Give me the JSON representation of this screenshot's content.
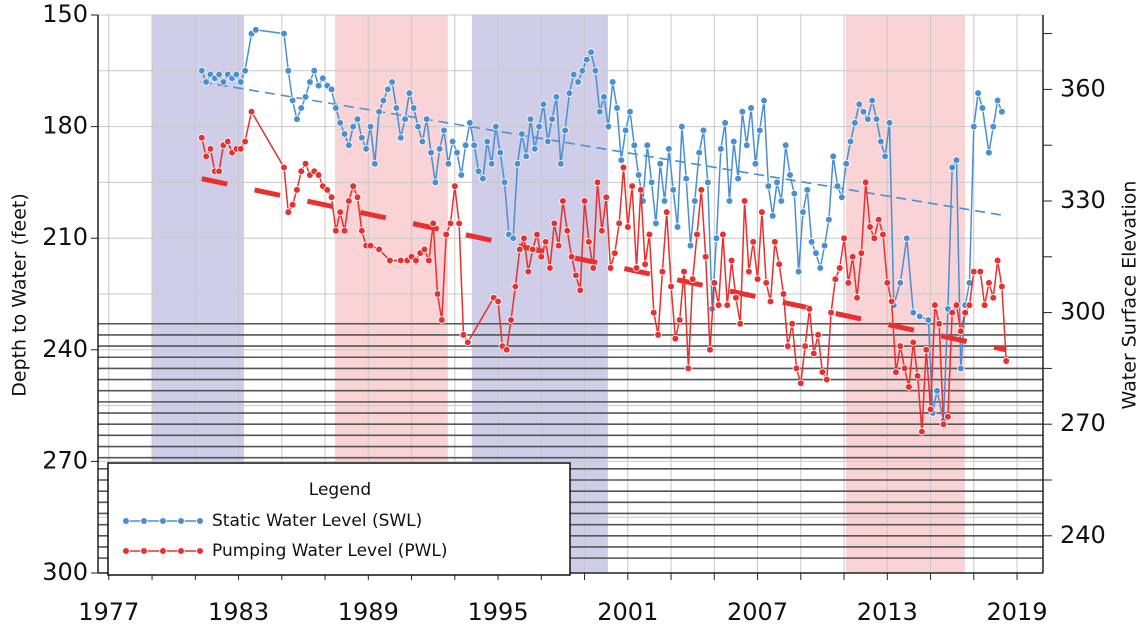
{
  "chart_data": {
    "type": "line",
    "ylabel": "Depth to Water (feet)",
    "y2label": "Water Surface Elevation",
    "legend_title": "Legend",
    "xlim": [
      1976.5,
      2020.2
    ],
    "xticks": [
      1977,
      1983,
      1989,
      1995,
      2001,
      2007,
      2013,
      2019
    ],
    "xgrid": [
      1977,
      1979,
      1981,
      1983,
      1985,
      1987,
      1989,
      1991,
      1993,
      1995,
      1997,
      1999,
      2001,
      2003,
      2005,
      2007,
      2009,
      2011,
      2013,
      2015,
      2017,
      2019
    ],
    "ylim": [
      150,
      300
    ],
    "y_reversed": true,
    "yticks": [
      150,
      180,
      210,
      240,
      270,
      300
    ],
    "ygrid": [
      150,
      165,
      180,
      195,
      210,
      225,
      240,
      255,
      270,
      285,
      300
    ],
    "y2lim": [
      230,
      380
    ],
    "y2ticks": [
      240,
      270,
      300,
      330,
      360
    ],
    "y2minor": [
      255,
      285,
      315,
      345,
      375
    ],
    "grid": true,
    "shaded_periods": [
      {
        "from": 1979.0,
        "to": 1983.25,
        "color": "#cfcde8"
      },
      {
        "from": 1987.46,
        "to": 1992.68,
        "color": "#f9d3d6"
      },
      {
        "from": 1993.79,
        "to": 2000.08,
        "color": "#cfcde8"
      },
      {
        "from": 2011.09,
        "to": 2016.59,
        "color": "#f9d3d6"
      }
    ],
    "screen_depths": [
      233,
      236,
      239,
      242,
      245,
      248,
      251,
      254,
      257,
      260,
      263,
      266,
      269,
      272,
      275,
      278,
      281,
      284,
      287,
      290,
      293,
      296
    ],
    "series": [
      {
        "name": "Static Water Level (SWL)",
        "color": "#4a8fd0",
        "x": [
          1981.3,
          1981.5,
          1981.7,
          1981.9,
          1982.1,
          1982.3,
          1982.5,
          1982.7,
          1982.9,
          1983.1,
          1983.3,
          1983.6,
          1983.8,
          1985.1,
          1985.3,
          1985.5,
          1985.7,
          1985.9,
          1986.1,
          1986.3,
          1986.5,
          1986.7,
          1986.9,
          1987.1,
          1987.3,
          1987.5,
          1987.7,
          1987.9,
          1988.1,
          1988.3,
          1988.5,
          1988.7,
          1988.9,
          1989.1,
          1989.3,
          1989.5,
          1989.7,
          1989.9,
          1990.1,
          1990.3,
          1990.5,
          1990.7,
          1990.9,
          1991.1,
          1991.3,
          1991.5,
          1991.7,
          1991.9,
          1992.1,
          1992.3,
          1992.5,
          1992.7,
          1992.9,
          1993.1,
          1993.3,
          1993.5,
          1993.7,
          1993.9,
          1994.1,
          1994.3,
          1994.5,
          1994.7,
          1994.9,
          1995.1,
          1995.3,
          1995.5,
          1995.7,
          1995.9,
          1996.1,
          1996.3,
          1996.5,
          1996.7,
          1996.9,
          1997.1,
          1997.3,
          1997.5,
          1997.7,
          1997.9,
          1998.1,
          1998.3,
          1998.5,
          1998.7,
          1998.9,
          1999.1,
          1999.3,
          1999.5,
          1999.7,
          1999.9,
          2000.1,
          2000.3,
          2000.5,
          2000.7,
          2000.9,
          2001.1,
          2001.3,
          2001.5,
          2001.7,
          2001.9,
          2002.1,
          2002.3,
          2002.5,
          2002.7,
          2002.9,
          2003.1,
          2003.3,
          2003.5,
          2003.7,
          2003.9,
          2004.1,
          2004.3,
          2004.5,
          2004.7,
          2004.9,
          2005.1,
          2005.3,
          2005.5,
          2005.7,
          2005.9,
          2006.1,
          2006.3,
          2006.5,
          2006.7,
          2006.9,
          2007.1,
          2007.3,
          2007.5,
          2007.7,
          2007.9,
          2008.1,
          2008.3,
          2008.5,
          2008.7,
          2008.9,
          2009.1,
          2009.3,
          2009.5,
          2009.7,
          2009.9,
          2010.1,
          2010.3,
          2010.5,
          2010.7,
          2010.9,
          2011.1,
          2011.3,
          2011.5,
          2011.7,
          2011.9,
          2012.1,
          2012.3,
          2012.5,
          2012.7,
          2012.9,
          2013.1,
          2013.3,
          2013.6,
          2013.9,
          2014.2,
          2014.5,
          2014.9,
          2015.1,
          2015.3,
          2015.6,
          2015.8,
          2016.0,
          2016.2,
          2016.4,
          2016.6,
          2016.8,
          2017.0,
          2017.2,
          2017.4,
          2017.7,
          2017.9,
          2018.1,
          2018.3
        ],
        "values": [
          165,
          168,
          166,
          167,
          166,
          168,
          166,
          167,
          166,
          168,
          165,
          155,
          154,
          155,
          165,
          173,
          178,
          175,
          172,
          168,
          165,
          169,
          167,
          169,
          170,
          175,
          179,
          182,
          185,
          180,
          178,
          183,
          186,
          180,
          190,
          176,
          173,
          170,
          168,
          175,
          183,
          178,
          171,
          175,
          180,
          184,
          178,
          187,
          195,
          186,
          181,
          190,
          184,
          187,
          193,
          185,
          179,
          185,
          192,
          194,
          184,
          190,
          180,
          187,
          195,
          209,
          210,
          190,
          182,
          188,
          178,
          186,
          180,
          174,
          184,
          178,
          172,
          190,
          181,
          171,
          166,
          168,
          165,
          162,
          160,
          165,
          176,
          172,
          180,
          168,
          175,
          189,
          181,
          176,
          185,
          193,
          200,
          185,
          195,
          206,
          190,
          200,
          186,
          197,
          207,
          180,
          194,
          212,
          200,
          187,
          181,
          195,
          229,
          210,
          186,
          179,
          200,
          184,
          194,
          176,
          185,
          175,
          190,
          181,
          173,
          196,
          204,
          195,
          200,
          185,
          193,
          198,
          219,
          203,
          197,
          211,
          214,
          218,
          212,
          205,
          188,
          196,
          199,
          190,
          184,
          179,
          174,
          176,
          178,
          173,
          178,
          184,
          188,
          179,
          228,
          222,
          210,
          230,
          231,
          232,
          257,
          251,
          259,
          229,
          191,
          189,
          245,
          228,
          222,
          180,
          171,
          175,
          187,
          180,
          173,
          176
        ],
        "trend": {
          "x": [
            1981.3,
            2018.5
          ],
          "values": [
            168,
            204
          ]
        }
      },
      {
        "name": "Pumping Water Level (PWL)",
        "color": "#e8302e",
        "x": [
          1981.3,
          1981.5,
          1981.7,
          1981.9,
          1982.1,
          1982.3,
          1982.5,
          1982.7,
          1982.9,
          1983.1,
          1983.3,
          1983.6,
          1985.1,
          1985.3,
          1985.5,
          1985.7,
          1985.9,
          1986.1,
          1986.3,
          1986.5,
          1986.7,
          1986.9,
          1987.1,
          1987.3,
          1987.5,
          1987.7,
          1987.9,
          1988.1,
          1988.3,
          1988.5,
          1988.7,
          1988.9,
          1989.1,
          1989.5,
          1990.0,
          1990.5,
          1990.8,
          1991.0,
          1991.2,
          1991.4,
          1991.6,
          1991.8,
          1992.0,
          1992.2,
          1992.4,
          1992.6,
          1992.8,
          1993.0,
          1993.2,
          1993.4,
          1993.6,
          1994.8,
          1995.0,
          1995.2,
          1995.4,
          1995.6,
          1995.8,
          1996.0,
          1996.2,
          1996.4,
          1996.6,
          1996.8,
          1997.0,
          1997.2,
          1997.4,
          1997.6,
          1997.8,
          1998.0,
          1998.2,
          1998.4,
          1998.6,
          1998.8,
          1999.0,
          1999.2,
          1999.4,
          1999.6,
          1999.8,
          2000.0,
          2000.2,
          2000.4,
          2000.6,
          2000.8,
          2001.0,
          2001.2,
          2001.4,
          2001.6,
          2001.8,
          2002.0,
          2002.2,
          2002.4,
          2002.6,
          2002.8,
          2003.0,
          2003.2,
          2003.4,
          2003.6,
          2003.8,
          2004.0,
          2004.2,
          2004.4,
          2004.6,
          2004.8,
          2005.0,
          2005.2,
          2005.4,
          2005.6,
          2005.8,
          2006.0,
          2006.2,
          2006.4,
          2006.6,
          2006.8,
          2007.0,
          2007.2,
          2007.4,
          2007.6,
          2007.8,
          2008.0,
          2008.2,
          2008.4,
          2008.6,
          2008.8,
          2009.0,
          2009.2,
          2009.4,
          2009.6,
          2009.8,
          2010.0,
          2010.2,
          2010.4,
          2010.6,
          2010.8,
          2011.0,
          2011.2,
          2011.4,
          2011.6,
          2011.8,
          2012.0,
          2012.2,
          2012.4,
          2012.6,
          2012.8,
          2013.0,
          2013.2,
          2013.4,
          2013.6,
          2013.8,
          2014.0,
          2014.2,
          2014.4,
          2014.6,
          2014.8,
          2015.0,
          2015.2,
          2015.4,
          2015.6,
          2015.8,
          2016.0,
          2016.2,
          2016.4,
          2016.6,
          2016.8,
          2017.0,
          2017.3,
          2017.5,
          2017.7,
          2017.9,
          2018.1,
          2018.3,
          2018.5
        ],
        "values": [
          183,
          188,
          186,
          192,
          192,
          185,
          184,
          187,
          186,
          186,
          184,
          176,
          191,
          203,
          201,
          197,
          192,
          190,
          193,
          192,
          193,
          196,
          197,
          199,
          208,
          203,
          208,
          200,
          196,
          199,
          208,
          212,
          212,
          213,
          216,
          216,
          216,
          215,
          216,
          214,
          213,
          216,
          206,
          225,
          232,
          209,
          206,
          196,
          206,
          236,
          238,
          226,
          227,
          239,
          240,
          232,
          223,
          213,
          210,
          219,
          213,
          209,
          215,
          211,
          218,
          206,
          212,
          200,
          208,
          215,
          220,
          224,
          200,
          211,
          218,
          195,
          208,
          199,
          218,
          214,
          206,
          191,
          207,
          196,
          218,
          197,
          217,
          209,
          230,
          236,
          219,
          203,
          223,
          237,
          232,
          219,
          245,
          221,
          209,
          197,
          215,
          240,
          222,
          228,
          209,
          228,
          216,
          226,
          233,
          200,
          219,
          211,
          221,
          203,
          222,
          227,
          211,
          217,
          225,
          239,
          233,
          245,
          249,
          239,
          229,
          241,
          236,
          246,
          248,
          230,
          221,
          218,
          210,
          222,
          215,
          226,
          214,
          195,
          207,
          210,
          205,
          209,
          222,
          227,
          246,
          239,
          245,
          250,
          238,
          247,
          262,
          240,
          256,
          228,
          233,
          260,
          258,
          230,
          228,
          235,
          230,
          228,
          219,
          219,
          228,
          222,
          226,
          216,
          223,
          243
        ],
        "trend": {
          "x": [
            1981.3,
            2018.5
          ],
          "values": [
            194,
            240
          ]
        }
      }
    ]
  }
}
